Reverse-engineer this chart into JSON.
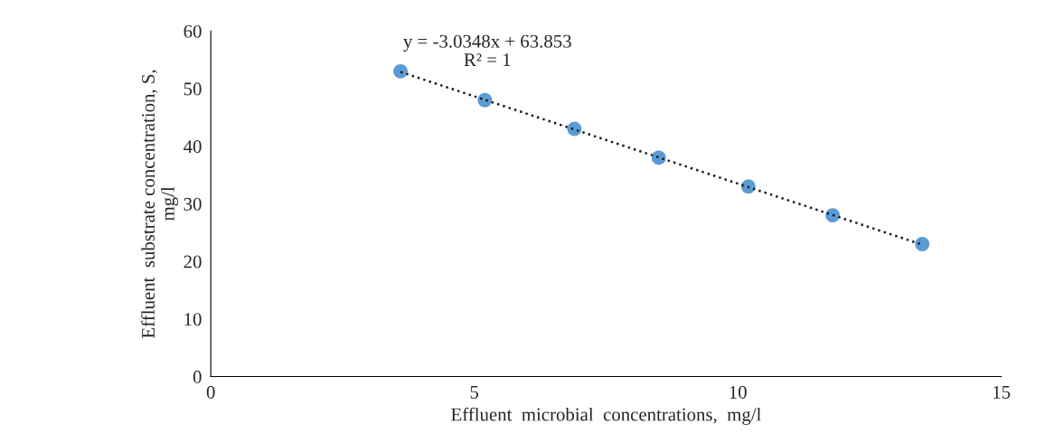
{
  "chart_data": {
    "type": "scatter",
    "xlabel": "Effluent  microbial  concentrations,  mg/l",
    "ylabel": "Effluent  substrate concentration, S,\nmg/l",
    "annotations": [
      "y = -3.0348x + 63.853\nR² = 1"
    ],
    "xlim": [
      0,
      15
    ],
    "xticks": [
      0,
      5,
      10,
      15
    ],
    "ylim": [
      0,
      60
    ],
    "yticks": [
      0,
      10,
      20,
      30,
      40,
      50,
      60
    ],
    "grid": false,
    "legend": false,
    "series": [
      {
        "color": "#5b9bd5",
        "marker": "circle",
        "x": [
          3.6,
          5.2,
          6.9,
          8.5,
          10.2,
          11.8,
          13.5
        ],
        "values": [
          53,
          48,
          43,
          38,
          33,
          28,
          23
        ]
      },
      {
        "type": "line",
        "color": "#1f1f1f",
        "line_style": "dotted",
        "marker": "none",
        "x": [
          3.6,
          13.5
        ],
        "values": [
          52.9,
          22.9
        ]
      }
    ]
  }
}
